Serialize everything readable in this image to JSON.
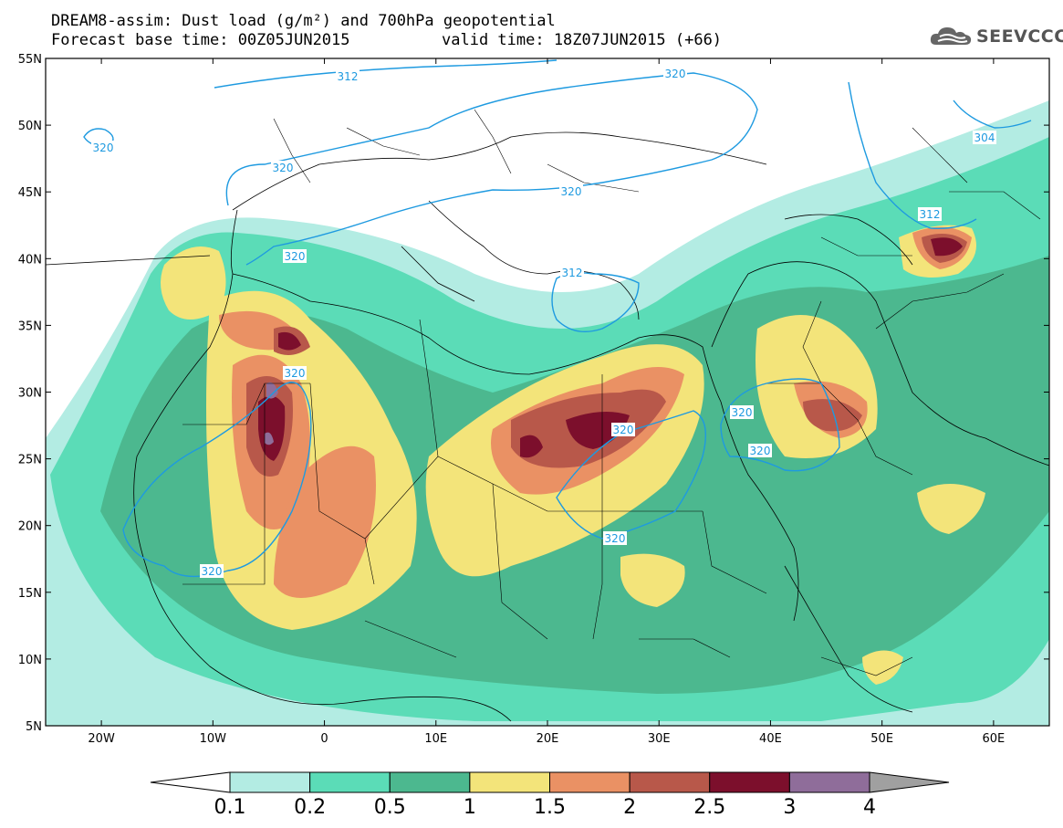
{
  "header": {
    "title": "DREAM8-assim: Dust load (g/m²) and 700hPa geopotential",
    "base_time": "Forecast base time: 00Z05JUN2015",
    "valid_time": "valid time: 18Z07JUN2015 (+66)",
    "logo_text": "SEEVCCC",
    "logo_icon": "cloud-icon"
  },
  "axes": {
    "lat_labels": [
      "55N",
      "50N",
      "45N",
      "40N",
      "35N",
      "30N",
      "25N",
      "20N",
      "15N",
      "10N",
      "5N"
    ],
    "lon_labels": [
      "20W",
      "10W",
      "0",
      "10E",
      "20E",
      "30E",
      "40E",
      "50E",
      "60E"
    ],
    "lat_range": [
      5,
      55
    ],
    "lon_range": [
      -25,
      65
    ]
  },
  "contours": {
    "variable": "700hPa geopotential",
    "labels": [
      "312",
      "320",
      "320",
      "320",
      "320",
      "320",
      "304",
      "312",
      "312",
      "320",
      "320",
      "320",
      "320",
      "320",
      "320"
    ]
  },
  "colorbar": {
    "levels": [
      "0.1",
      "0.2",
      "0.5",
      "1",
      "1.5",
      "2",
      "2.5",
      "3",
      "4"
    ],
    "colors": [
      "#ffffff",
      "#b3ece3",
      "#5bdcb7",
      "#4cb88f",
      "#f3e47a",
      "#ea9164",
      "#b8584a",
      "#7c0f2c",
      "#8f6d9a",
      "#a0a0a0"
    ]
  }
}
